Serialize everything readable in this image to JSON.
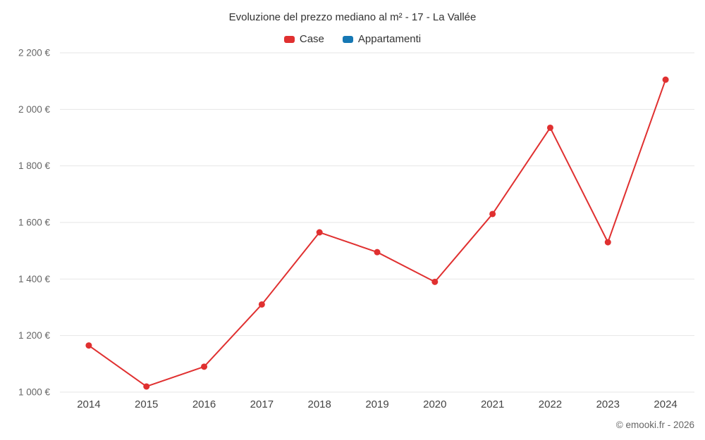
{
  "header": {
    "title": "Evoluzione del prezzo mediano al m² - 17 - La Vallée"
  },
  "legend": {
    "items": [
      {
        "label": "Case",
        "color": "#e03030"
      },
      {
        "label": "Appartamenti",
        "color": "#1678b4"
      }
    ]
  },
  "footer": {
    "copyright": "© emooki.fr - 2026"
  },
  "chart_data": {
    "type": "line",
    "title": "Evoluzione del prezzo mediano al m² - 17 - La Vallée",
    "categories": [
      "2014",
      "2015",
      "2016",
      "2017",
      "2018",
      "2019",
      "2020",
      "2021",
      "2022",
      "2023",
      "2024"
    ],
    "series": [
      {
        "name": "Case",
        "color": "#e03030",
        "values": [
          1165,
          1020,
          1090,
          1310,
          1565,
          1495,
          1390,
          1630,
          1935,
          1530,
          2105
        ]
      },
      {
        "name": "Appartamenti",
        "color": "#1678b4",
        "values": []
      }
    ],
    "xlabel": "",
    "ylabel": "",
    "ylim": [
      1000,
      2200
    ],
    "y_ticks": [
      {
        "value": 1000,
        "label": "1 000 €"
      },
      {
        "value": 1200,
        "label": "1 200 €"
      },
      {
        "value": 1400,
        "label": "1 400 €"
      },
      {
        "value": 1600,
        "label": "1 600 €"
      },
      {
        "value": 1800,
        "label": "1 800 €"
      },
      {
        "value": 2000,
        "label": "2 000 €"
      },
      {
        "value": 2200,
        "label": "2 200 €"
      }
    ],
    "grid": "horizontal",
    "grid_color": "#e6e6e6",
    "legend_position": "top"
  }
}
